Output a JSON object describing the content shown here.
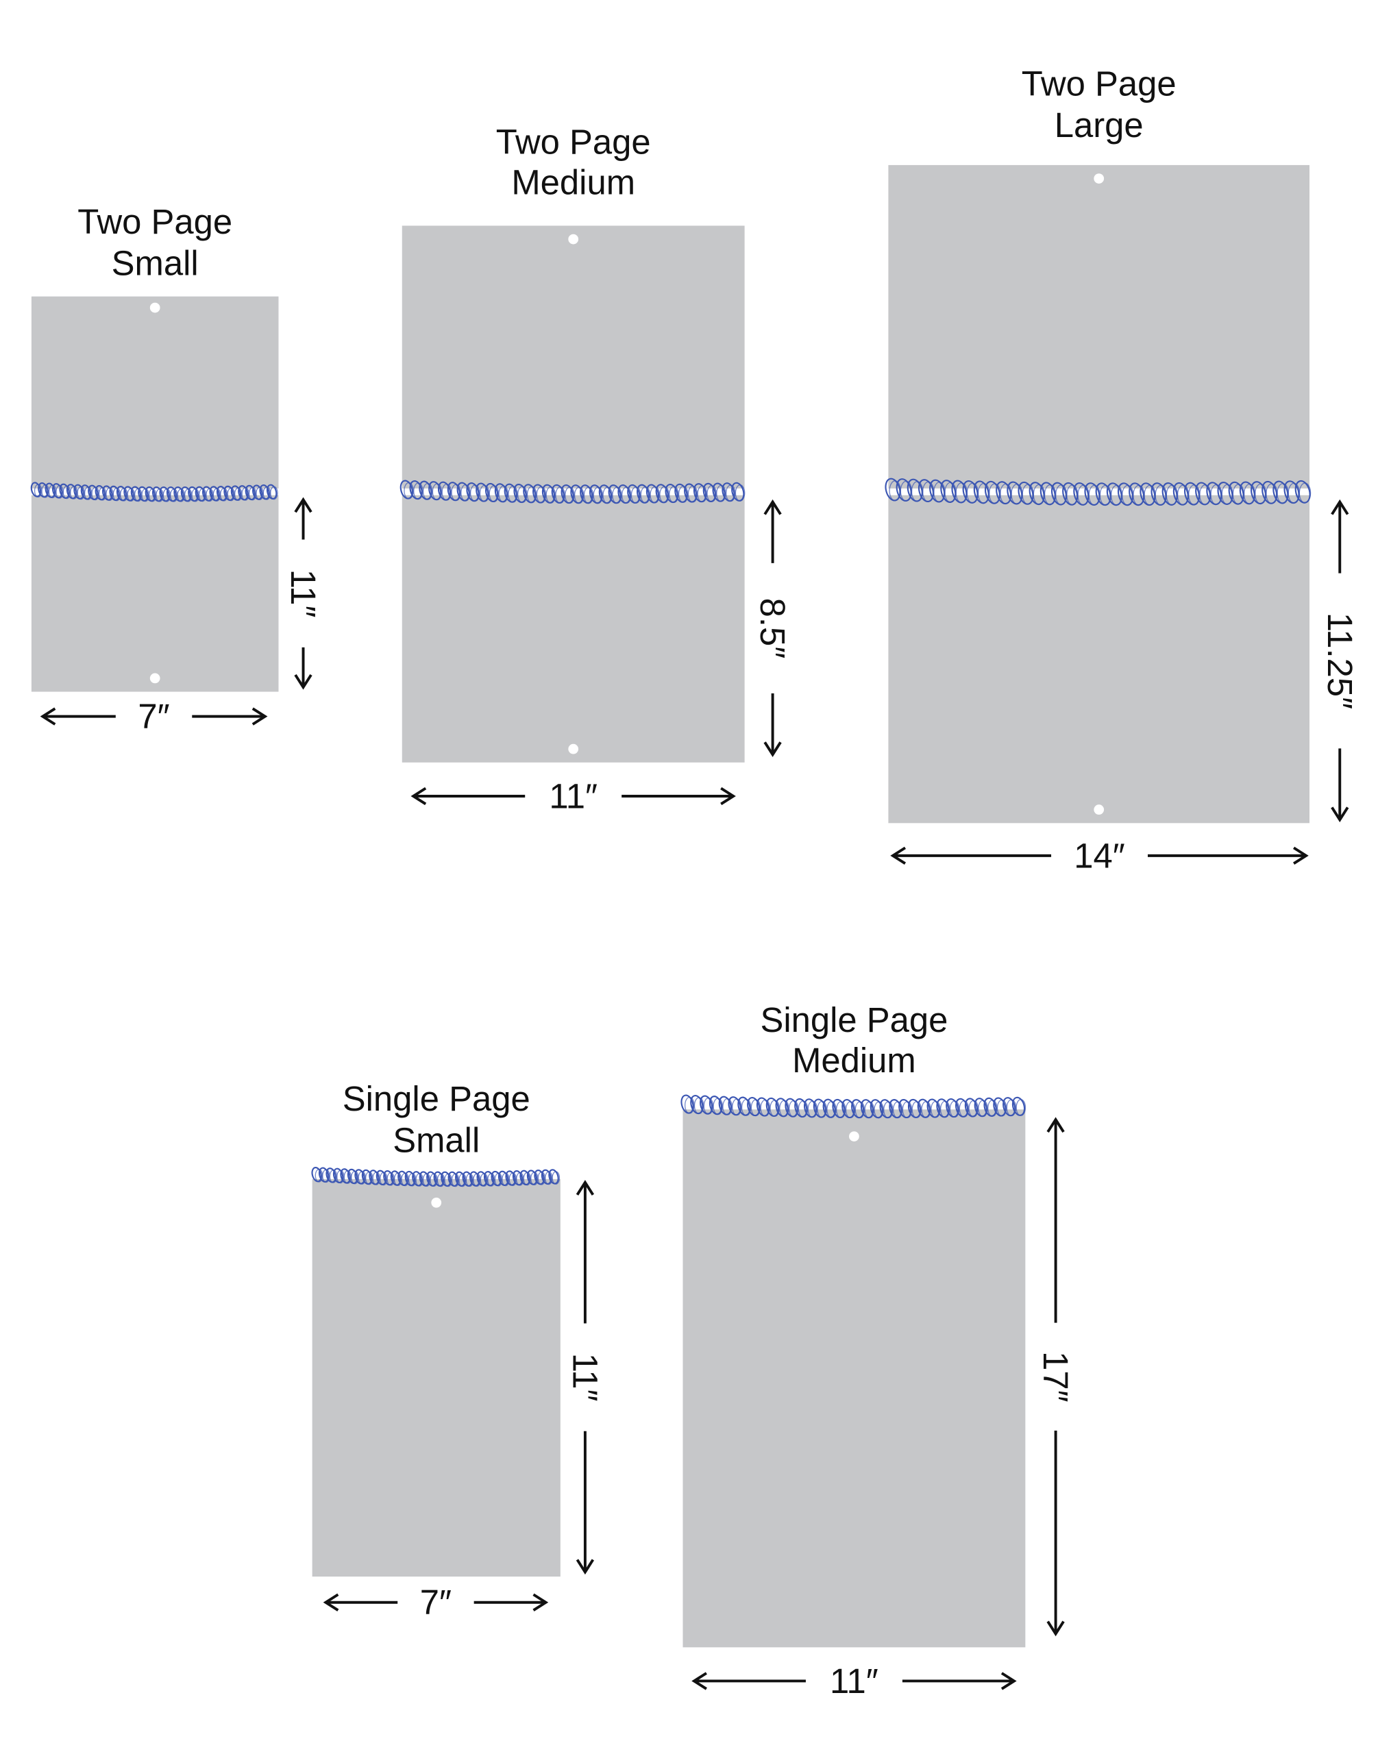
{
  "colors": {
    "page": "#c6c7c9",
    "coil": "#3b56b3",
    "hole": "#ffffff",
    "ink": "#111111"
  },
  "panels": [
    {
      "id": "two-page-small",
      "title": [
        "Two Page",
        "Small"
      ],
      "width_label": "7″",
      "height_label": "11″",
      "binding": "center"
    },
    {
      "id": "two-page-medium",
      "title": [
        "Two Page",
        "Medium"
      ],
      "width_label": "11″",
      "height_label": "8.5″",
      "binding": "center"
    },
    {
      "id": "two-page-large",
      "title": [
        "Two Page",
        "Large"
      ],
      "width_label": "14″",
      "height_label": "11.25″",
      "binding": "center"
    },
    {
      "id": "single-page-small",
      "title": [
        "Single Page",
        "Small"
      ],
      "width_label": "7″",
      "height_label": "11″",
      "binding": "top"
    },
    {
      "id": "single-page-medium",
      "title": [
        "Single Page",
        "Medium"
      ],
      "width_label": "11″",
      "height_label": "17″",
      "binding": "top"
    }
  ]
}
